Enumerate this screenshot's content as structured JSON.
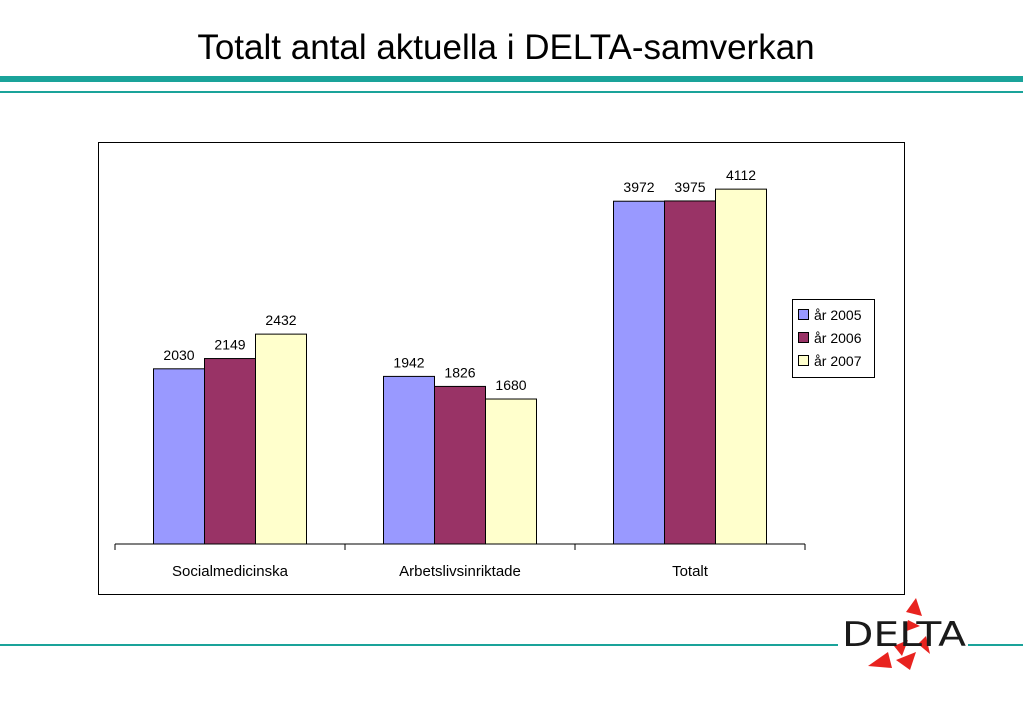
{
  "slide": {
    "title": "Totalt antal aktuella i DELTA-samverkan",
    "accent_color": "#1aa39a"
  },
  "logo": {
    "text": "DELTA",
    "icon": "delta-triangles-logo",
    "color": "#e8231f"
  },
  "chart_data": {
    "type": "bar",
    "categories": [
      "Socialmedicinska",
      "Arbetslivsinriktade",
      "Totalt"
    ],
    "series": [
      {
        "name": "år 2005",
        "values": [
          2030,
          1942,
          3972
        ],
        "color": "#9999ff"
      },
      {
        "name": "år 2006",
        "values": [
          2149,
          1826,
          3975
        ],
        "color": "#993366"
      },
      {
        "name": "år 2007",
        "values": [
          2432,
          1680,
          4112
        ],
        "color": "#ffffcc"
      }
    ],
    "title": "",
    "xlabel": "",
    "ylabel": "",
    "ylim": [
      0,
      4600
    ],
    "grid": false,
    "legend_position": "right",
    "data_labels": true
  }
}
